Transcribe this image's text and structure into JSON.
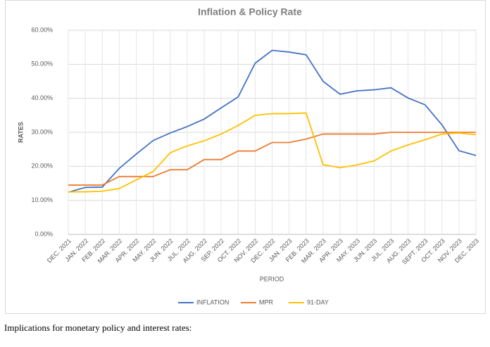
{
  "chart_data": {
    "type": "line",
    "title": "Inflation & Policy Rate",
    "y_label": "RATES",
    "x_label": "PERIOD",
    "categories": [
      "DEC. 2021",
      "JAN. 2022",
      "FEB. 2022",
      "MAR. 2022",
      "APR. 2022",
      "MAY. 2022",
      "JUN. 2022",
      "JUL. 2022",
      "AUG. 2022",
      "SEP. 2022",
      "OCT. 2022",
      "NOV. 2022",
      "DEC. 2022",
      "JAN. 2023",
      "FEB. 2023",
      "MAR. 2023",
      "APR. 2023",
      "MAY. 2023",
      "JUN. 2023",
      "JUL. 2023",
      "AUG. 2023",
      "SEPT. 2023",
      "OCT. 2023",
      "NOV. 2023",
      "DEC. 2023"
    ],
    "series": [
      {
        "name": "INFLATION",
        "color": "#4472c4",
        "values": [
          12.4,
          13.8,
          13.9,
          19.4,
          23.6,
          27.6,
          29.8,
          31.7,
          33.9,
          37.2,
          40.4,
          50.3,
          54.1,
          53.6,
          52.8,
          45.0,
          41.2,
          42.2,
          42.5,
          43.1,
          40.1,
          38.1,
          32.2,
          24.6,
          23.2
        ]
      },
      {
        "name": "MPR",
        "color": "#ed7d31",
        "values": [
          14.5,
          14.5,
          14.5,
          17,
          17,
          17,
          19,
          19,
          22,
          22,
          24.5,
          24.5,
          27,
          27,
          28,
          29.5,
          29.5,
          29.5,
          29.5,
          30,
          30,
          30,
          30,
          30,
          30
        ]
      },
      {
        "name": "91-DAY",
        "color": "#ffc000",
        "values": [
          12.5,
          12.5,
          12.7,
          13.5,
          16,
          18.5,
          24,
          26,
          27.5,
          29.5,
          32,
          35,
          35.5,
          35.5,
          35.7,
          20.5,
          19.6,
          20.4,
          21.6,
          24.5,
          26.3,
          27.8,
          29.5,
          29.8,
          29.3
        ]
      }
    ],
    "ylim": [
      0,
      60
    ],
    "yticks": [
      {
        "value": 0,
        "label": "0.00%"
      },
      {
        "value": 10,
        "label": "10.00%"
      },
      {
        "value": 20,
        "label": "20.00%"
      },
      {
        "value": 30,
        "label": "30.00%"
      },
      {
        "value": 40,
        "label": "40.00%"
      },
      {
        "value": 50,
        "label": "50.00%"
      },
      {
        "value": 60,
        "label": "60.00%"
      }
    ],
    "grid": true,
    "legend": "bottom"
  },
  "caption": "Implications for monetary policy and interest rates:"
}
